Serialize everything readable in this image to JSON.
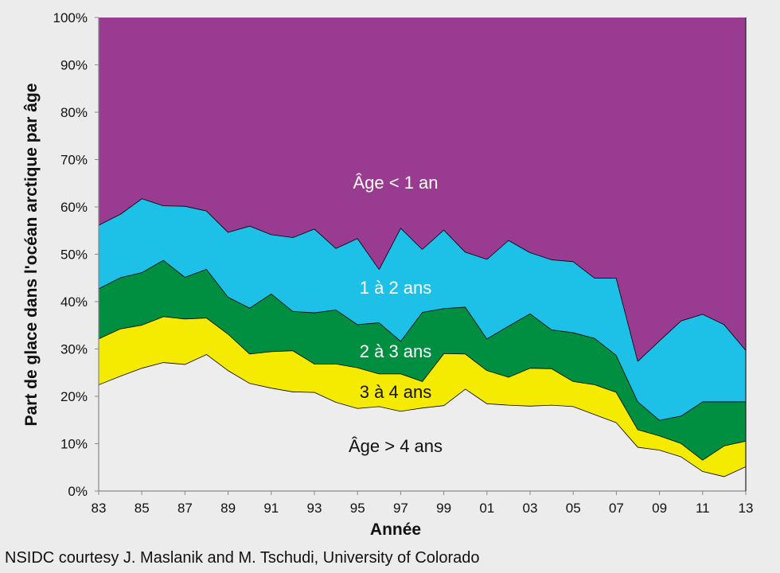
{
  "chart_data": {
    "type": "area",
    "stacked": true,
    "percent": true,
    "title": "",
    "xlabel": "Année",
    "ylabel": "Part de glace dans l'océan arctique par âge",
    "source": "NSIDC courtesy J. Maslanik and M. Tschudi, University of Colorado",
    "x": [
      1983,
      1984,
      1985,
      1986,
      1987,
      1988,
      1989,
      1990,
      1991,
      1992,
      1993,
      1994,
      1995,
      1996,
      1997,
      1998,
      1999,
      2000,
      2001,
      2002,
      2003,
      2004,
      2005,
      2006,
      2007,
      2008,
      2009,
      2010,
      2011,
      2012,
      2013
    ],
    "x_tick_labels": [
      "83",
      "85",
      "87",
      "89",
      "91",
      "93",
      "95",
      "97",
      "99",
      "01",
      "03",
      "05",
      "07",
      "09",
      "11",
      "13"
    ],
    "y_tick_labels": [
      "0%",
      "10%",
      "20%",
      "30%",
      "40%",
      "50%",
      "60%",
      "70%",
      "80%",
      "90%",
      "100%"
    ],
    "ylim": [
      0,
      100
    ],
    "xlim": [
      1983,
      2013
    ],
    "grid": false,
    "legend": "inline labels",
    "series": [
      {
        "name": "Âge > 4 ans",
        "color": "#ededed",
        "label_color": "#111111",
        "values": [
          22.5,
          24.3,
          26.0,
          27.2,
          26.8,
          28.9,
          25.5,
          22.8,
          21.8,
          21.0,
          20.9,
          18.8,
          17.5,
          17.9,
          16.9,
          17.6,
          18.1,
          21.6,
          18.5,
          18.2,
          18.0,
          18.2,
          17.9,
          16.2,
          14.5,
          9.3,
          8.7,
          7.3,
          4.2,
          3.1,
          5.2
        ]
      },
      {
        "name": "3 à 4 ans",
        "color": "#f4eb00",
        "label_color": "#111111",
        "values": [
          9.7,
          10.0,
          9.1,
          9.7,
          9.6,
          7.7,
          7.7,
          6.2,
          7.7,
          8.7,
          6.0,
          8.1,
          8.6,
          6.9,
          7.9,
          5.6,
          11.0,
          7.4,
          7.0,
          5.9,
          8.0,
          7.7,
          5.3,
          6.3,
          6.4,
          3.7,
          3.0,
          2.8,
          2.4,
          6.5,
          5.4
        ]
      },
      {
        "name": "2 à 3 ans",
        "color": "#008f41",
        "label_color": "#ffffff",
        "values": [
          10.6,
          10.8,
          11.1,
          11.9,
          8.8,
          10.3,
          7.8,
          9.7,
          12.2,
          8.3,
          10.8,
          11.4,
          9.1,
          10.8,
          6.9,
          14.6,
          9.5,
          9.9,
          6.7,
          10.8,
          11.5,
          8.2,
          10.3,
          9.8,
          7.8,
          5.9,
          3.3,
          5.8,
          12.3,
          9.3,
          8.3
        ]
      },
      {
        "name": "1 à 2 ans",
        "color": "#1dc0e6",
        "label_color": "#ffffff",
        "values": [
          13.4,
          13.4,
          15.6,
          11.5,
          15.0,
          12.3,
          13.7,
          17.3,
          12.5,
          15.6,
          17.7,
          13.0,
          18.2,
          11.3,
          23.9,
          13.3,
          16.6,
          11.6,
          16.8,
          18.1,
          12.9,
          14.8,
          15.0,
          12.7,
          16.3,
          8.6,
          16.8,
          20.1,
          18.5,
          16.3,
          10.9
        ]
      },
      {
        "name": "Âge < 1 an",
        "color": "#9a3b92",
        "label_color": "#ffffff",
        "values": [
          43.8,
          41.5,
          38.2,
          39.7,
          39.8,
          40.8,
          45.3,
          44.0,
          45.8,
          46.4,
          44.6,
          48.7,
          46.6,
          53.1,
          44.4,
          48.9,
          44.8,
          49.5,
          51.0,
          47.0,
          49.6,
          51.1,
          51.5,
          55.0,
          55.0,
          72.5,
          68.2,
          64.0,
          62.6,
          64.8,
          70.2
        ]
      }
    ]
  }
}
